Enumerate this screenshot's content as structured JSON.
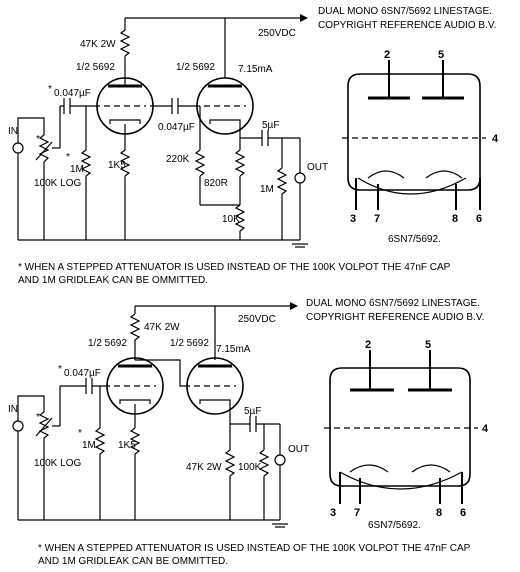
{
  "top": {
    "title_line1": "DUAL MONO  6SN7/5692 LINESTAGE.",
    "title_line2": "COPYRIGHT REFERENCE AUDIO B.V.",
    "supply": "250VDC",
    "r_plate1": "47K 2W",
    "tube1": "1/2 5692",
    "tube2": "1/2 5692",
    "current": "7.15mA",
    "c_in": "0.047µF",
    "c_in_mark": "*",
    "c_couple": "0.047µF",
    "c_out": "5µF",
    "in_label": "IN",
    "pot": "100K LOG",
    "pot_mark": "*",
    "r_grid": "1M",
    "r_grid_mark": "*",
    "r_cathode1": "1K5",
    "r_grid2": "220K",
    "r_cathode2": "820R",
    "r_out": "1M",
    "r_bottom": "10K",
    "out_label": "OUT",
    "pins": [
      "2",
      "5",
      "3",
      "7",
      "8",
      "6",
      "4"
    ],
    "tube_name": "6SN7/5692.",
    "note_line1": "* WHEN A STEPPED ATTENUATOR IS USED INSTEAD OF THE 100K VOLPOT THE 47nF CAP",
    "note_line2": "  AND 1M GRIDLEAK CAN BE OMMITTED."
  },
  "bottom": {
    "title_line1": "DUAL MONO  6SN7/5692 LINESTAGE.",
    "title_line2": "COPYRIGHT REFERENCE AUDIO B.V.",
    "supply": "250VDC",
    "r_plate1": "47K 2W",
    "tube1": "1/2 5692",
    "tube2": "1/2 5692",
    "current": "7.15mA",
    "c_in": "0.047µF",
    "c_in_mark": "*",
    "c_out": "5µF",
    "in_label": "IN",
    "pot": "100K LOG",
    "pot_mark": "*",
    "r_grid": "1M",
    "r_grid_mark": "*",
    "r_cathode1": "1K5",
    "r_load": "47K 2W",
    "r_out": "100K",
    "out_label": "OUT",
    "pins": [
      "2",
      "5",
      "3",
      "7",
      "8",
      "6",
      "4"
    ],
    "tube_name": "6SN7/5692.",
    "note_line1": "* WHEN A STEPPED ATTENUATOR IS USED INSTEAD OF THE 100K VOLPOT THE 47nF CAP",
    "note_line2": "  AND 1M GRIDLEAK CAN BE OMMITTED."
  }
}
